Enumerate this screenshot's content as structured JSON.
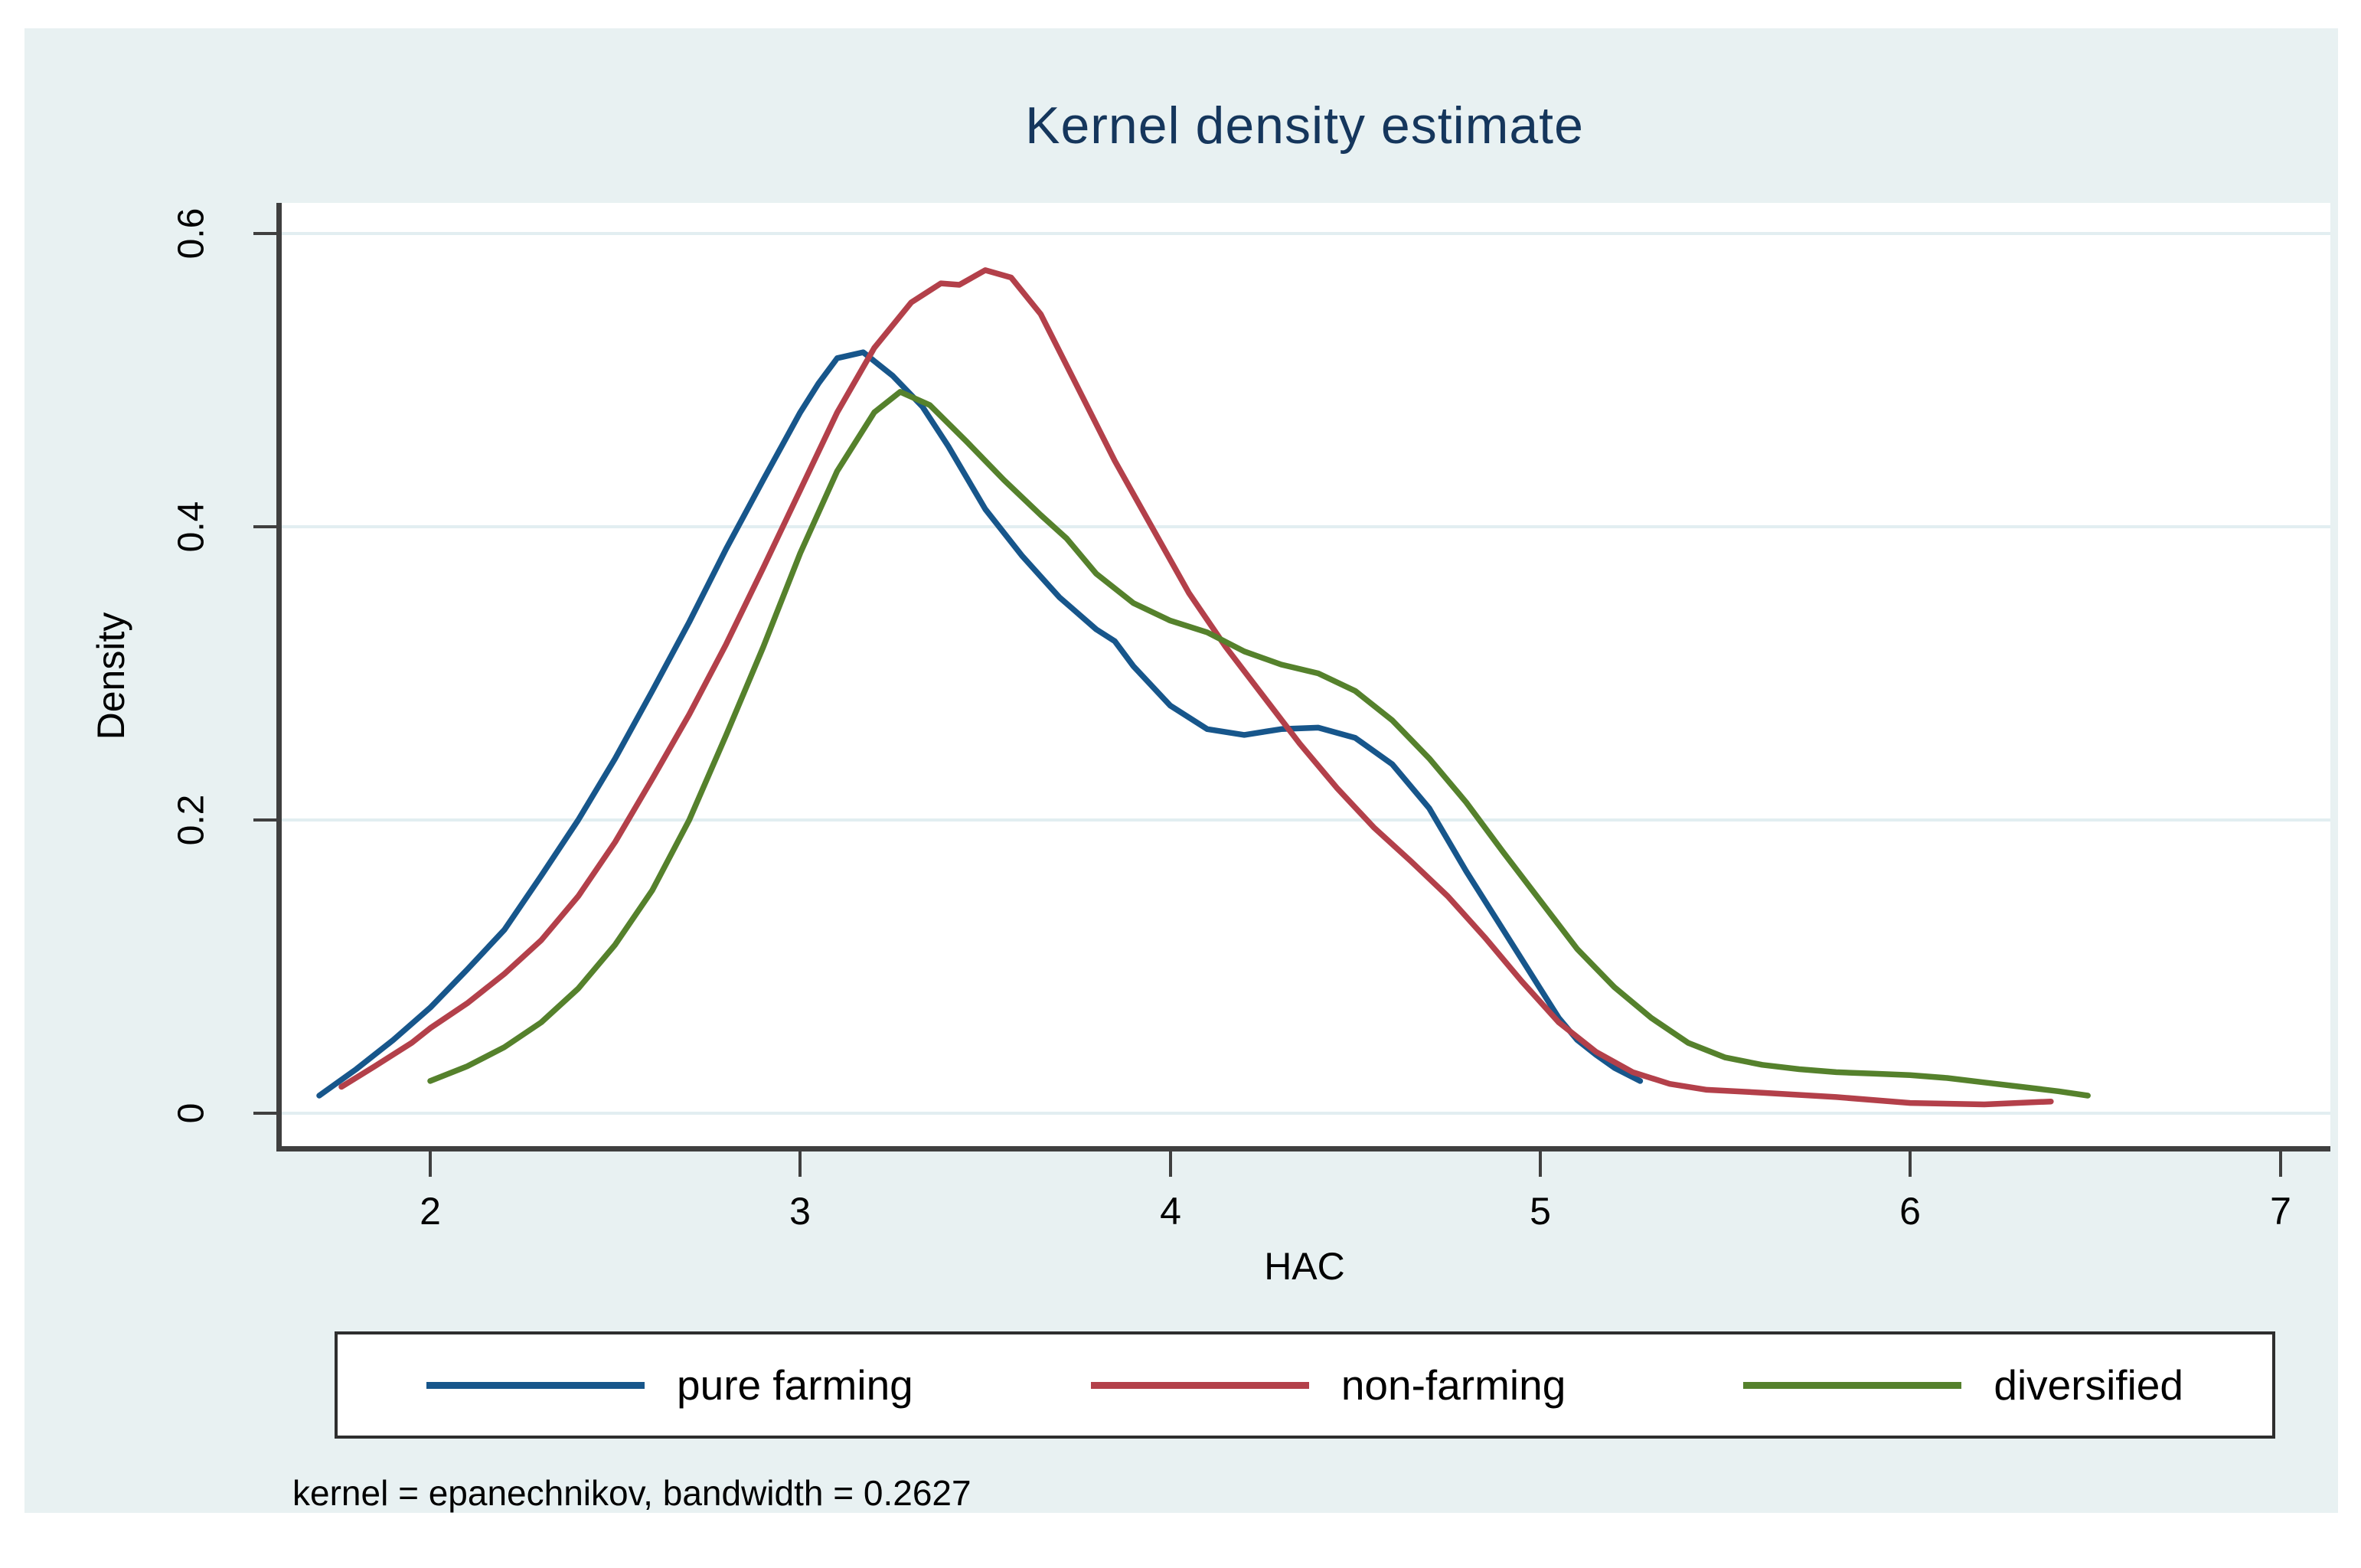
{
  "title": "Kernel density estimate",
  "note": "kernel = epanechnikov, bandwidth = 0.2627",
  "colors": {
    "graph_background": "#e8f1f2",
    "plot_background": "#ffffff",
    "gridline": "#e2eef1",
    "axis": "#3f3f3f",
    "title_text": "#15365c",
    "pure_farming": "#17568b",
    "non_farming": "#b3404a",
    "diversified": "#55812c"
  },
  "axes": {
    "y": {
      "label": "Density",
      "ticks": [
        {
          "value": 0.0,
          "label": "0"
        },
        {
          "value": 0.2,
          "label": "0.2"
        },
        {
          "value": 0.4,
          "label": "0.4"
        },
        {
          "value": 0.6,
          "label": "0.6"
        }
      ]
    },
    "x": {
      "label": "HAC",
      "ticks": [
        {
          "value": 2,
          "label": "2"
        },
        {
          "value": 3,
          "label": "3"
        },
        {
          "value": 4,
          "label": "4"
        },
        {
          "value": 5,
          "label": "5"
        },
        {
          "value": 6,
          "label": "6"
        },
        {
          "value": 7,
          "label": "7"
        }
      ]
    }
  },
  "legend": {
    "items": [
      {
        "label": "pure farming",
        "color_key": "pure_farming"
      },
      {
        "label": "non-farming",
        "color_key": "non_farming"
      },
      {
        "label": "diversified",
        "color_key": "diversified"
      }
    ]
  },
  "chart_data": {
    "type": "line",
    "title": "Kernel density estimate",
    "xlabel": "HAC",
    "ylabel": "Density",
    "xlim": [
      1.59,
      7.13
    ],
    "ylim": [
      0,
      0.625
    ],
    "x_ticks": [
      2,
      3,
      4,
      5,
      6,
      7
    ],
    "y_ticks": [
      0,
      0.2,
      0.4,
      0.6
    ],
    "grid": "horizontal",
    "legend_position": "bottom",
    "note": "kernel = epanechnikov, bandwidth = 0.2627",
    "series": [
      {
        "name": "pure farming",
        "color_key": "pure_farming",
        "points": [
          [
            1.7,
            0.012
          ],
          [
            1.8,
            0.03
          ],
          [
            1.9,
            0.05
          ],
          [
            2.0,
            0.072
          ],
          [
            2.1,
            0.098
          ],
          [
            2.2,
            0.125
          ],
          [
            2.3,
            0.162
          ],
          [
            2.4,
            0.2
          ],
          [
            2.5,
            0.242
          ],
          [
            2.6,
            0.288
          ],
          [
            2.7,
            0.335
          ],
          [
            2.8,
            0.385
          ],
          [
            2.9,
            0.432
          ],
          [
            3.0,
            0.478
          ],
          [
            3.05,
            0.498
          ],
          [
            3.1,
            0.515
          ],
          [
            3.17,
            0.519
          ],
          [
            3.25,
            0.503
          ],
          [
            3.33,
            0.482
          ],
          [
            3.4,
            0.455
          ],
          [
            3.5,
            0.412
          ],
          [
            3.6,
            0.38
          ],
          [
            3.7,
            0.352
          ],
          [
            3.8,
            0.33
          ],
          [
            3.85,
            0.322
          ],
          [
            3.9,
            0.305
          ],
          [
            4.0,
            0.278
          ],
          [
            4.1,
            0.262
          ],
          [
            4.2,
            0.258
          ],
          [
            4.3,
            0.262
          ],
          [
            4.4,
            0.263
          ],
          [
            4.5,
            0.256
          ],
          [
            4.6,
            0.238
          ],
          [
            4.7,
            0.208
          ],
          [
            4.8,
            0.165
          ],
          [
            4.9,
            0.125
          ],
          [
            5.0,
            0.085
          ],
          [
            5.05,
            0.065
          ],
          [
            5.1,
            0.05
          ],
          [
            5.15,
            0.04
          ],
          [
            5.2,
            0.031
          ],
          [
            5.27,
            0.022
          ]
        ]
      },
      {
        "name": "non-farming",
        "color_key": "non_farming",
        "points": [
          [
            1.76,
            0.018
          ],
          [
            1.85,
            0.032
          ],
          [
            1.95,
            0.048
          ],
          [
            2.0,
            0.058
          ],
          [
            2.1,
            0.075
          ],
          [
            2.2,
            0.095
          ],
          [
            2.3,
            0.118
          ],
          [
            2.4,
            0.148
          ],
          [
            2.5,
            0.185
          ],
          [
            2.6,
            0.228
          ],
          [
            2.7,
            0.272
          ],
          [
            2.8,
            0.32
          ],
          [
            2.9,
            0.372
          ],
          [
            3.0,
            0.425
          ],
          [
            3.1,
            0.478
          ],
          [
            3.2,
            0.522
          ],
          [
            3.3,
            0.553
          ],
          [
            3.38,
            0.566
          ],
          [
            3.43,
            0.565
          ],
          [
            3.5,
            0.575
          ],
          [
            3.57,
            0.57
          ],
          [
            3.65,
            0.545
          ],
          [
            3.75,
            0.495
          ],
          [
            3.85,
            0.445
          ],
          [
            3.95,
            0.4
          ],
          [
            4.05,
            0.355
          ],
          [
            4.15,
            0.318
          ],
          [
            4.25,
            0.285
          ],
          [
            4.35,
            0.252
          ],
          [
            4.45,
            0.222
          ],
          [
            4.55,
            0.195
          ],
          [
            4.65,
            0.172
          ],
          [
            4.75,
            0.148
          ],
          [
            4.85,
            0.12
          ],
          [
            4.95,
            0.09
          ],
          [
            5.05,
            0.062
          ],
          [
            5.15,
            0.042
          ],
          [
            5.25,
            0.028
          ],
          [
            5.35,
            0.02
          ],
          [
            5.45,
            0.016
          ],
          [
            5.6,
            0.014
          ],
          [
            5.8,
            0.011
          ],
          [
            6.0,
            0.007
          ],
          [
            6.2,
            0.006
          ],
          [
            6.38,
            0.008
          ]
        ]
      },
      {
        "name": "diversified",
        "color_key": "diversified",
        "points": [
          [
            2.0,
            0.022
          ],
          [
            2.1,
            0.032
          ],
          [
            2.2,
            0.045
          ],
          [
            2.3,
            0.062
          ],
          [
            2.4,
            0.085
          ],
          [
            2.5,
            0.115
          ],
          [
            2.6,
            0.152
          ],
          [
            2.7,
            0.2
          ],
          [
            2.8,
            0.258
          ],
          [
            2.9,
            0.318
          ],
          [
            3.0,
            0.382
          ],
          [
            3.1,
            0.438
          ],
          [
            3.2,
            0.478
          ],
          [
            3.27,
            0.492
          ],
          [
            3.35,
            0.483
          ],
          [
            3.45,
            0.458
          ],
          [
            3.55,
            0.432
          ],
          [
            3.65,
            0.408
          ],
          [
            3.72,
            0.392
          ],
          [
            3.8,
            0.368
          ],
          [
            3.9,
            0.348
          ],
          [
            4.0,
            0.336
          ],
          [
            4.1,
            0.328
          ],
          [
            4.2,
            0.315
          ],
          [
            4.3,
            0.306
          ],
          [
            4.4,
            0.3
          ],
          [
            4.5,
            0.288
          ],
          [
            4.6,
            0.268
          ],
          [
            4.7,
            0.242
          ],
          [
            4.8,
            0.212
          ],
          [
            4.9,
            0.178
          ],
          [
            5.0,
            0.145
          ],
          [
            5.1,
            0.112
          ],
          [
            5.2,
            0.086
          ],
          [
            5.3,
            0.065
          ],
          [
            5.4,
            0.048
          ],
          [
            5.5,
            0.038
          ],
          [
            5.6,
            0.033
          ],
          [
            5.7,
            0.03
          ],
          [
            5.8,
            0.028
          ],
          [
            5.9,
            0.027
          ],
          [
            6.0,
            0.026
          ],
          [
            6.1,
            0.024
          ],
          [
            6.2,
            0.021
          ],
          [
            6.3,
            0.018
          ],
          [
            6.4,
            0.015
          ],
          [
            6.48,
            0.012
          ]
        ]
      }
    ]
  }
}
